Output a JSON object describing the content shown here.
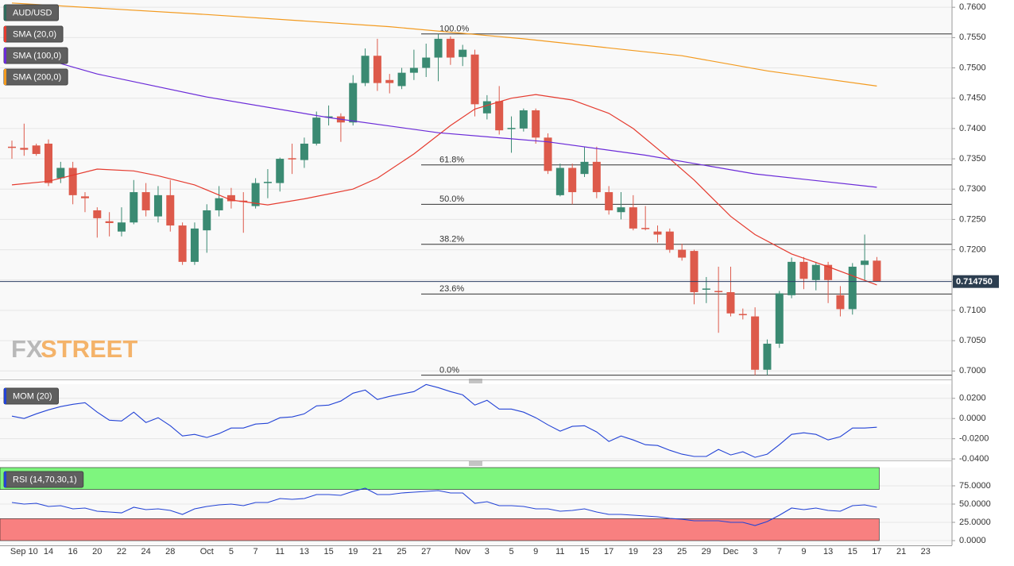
{
  "chart_data": [
    {
      "type": "candlestick",
      "title": "AUD/USD",
      "up_color": "#3a8a72",
      "down_color": "#dd5a4b",
      "grid": true,
      "watermark": [
        "FX",
        "STREET"
      ],
      "categories": [
        "Sep 9",
        "Sep 10",
        "Sep 13",
        "Sep 14",
        "Sep 15",
        "Sep 16",
        "Sep 17",
        "Sep 20",
        "Sep 21",
        "Sep 22",
        "Sep 23",
        "Sep 24",
        "Sep 27",
        "Sep 28",
        "Sep 29",
        "Sep 30",
        "Oct 1",
        "Oct 4",
        "Oct 5",
        "Oct 6",
        "Oct 7",
        "Oct 8",
        "Oct 11",
        "Oct 12",
        "Oct 13",
        "Oct 14",
        "Oct 15",
        "Oct 18",
        "Oct 19",
        "Oct 20",
        "Oct 21",
        "Oct 22",
        "Oct 25",
        "Oct 26",
        "Oct 27",
        "Oct 28",
        "Oct 29",
        "Nov 1",
        "Nov 2",
        "Nov 3",
        "Nov 4",
        "Nov 5",
        "Nov 8",
        "Nov 9",
        "Nov 10",
        "Nov 11",
        "Nov 12",
        "Nov 15",
        "Nov 16",
        "Nov 17",
        "Nov 18",
        "Nov 19",
        "Nov 22",
        "Nov 23",
        "Nov 24",
        "Nov 25",
        "Nov 26",
        "Nov 29",
        "Nov 30",
        "Dec 1",
        "Dec 2",
        "Dec 3",
        "Dec 6",
        "Dec 7",
        "Dec 8",
        "Dec 9",
        "Dec 10",
        "Dec 13",
        "Dec 14",
        "Dec 15",
        "Dec 16",
        "Dec 17"
      ],
      "open": [
        0.737,
        0.7368,
        0.7372,
        0.7375,
        0.7318,
        0.7335,
        0.7288,
        0.7265,
        0.7247,
        0.723,
        0.7245,
        0.7295,
        0.7255,
        0.729,
        0.724,
        0.718,
        0.7232,
        0.7265,
        0.729,
        0.7281,
        0.7272,
        0.731,
        0.731,
        0.7351,
        0.7348,
        0.7375,
        0.7418,
        0.742,
        0.741,
        0.7475,
        0.752,
        0.748,
        0.747,
        0.7492,
        0.75,
        0.7517,
        0.7548,
        0.7518,
        0.7522,
        0.7425,
        0.7445,
        0.7399,
        0.74,
        0.743,
        0.7385,
        0.729,
        0.7335,
        0.7325,
        0.7345,
        0.7295,
        0.7262,
        0.727,
        0.7236,
        0.723,
        0.723,
        0.72,
        0.7198,
        0.7134,
        0.7132,
        0.713,
        0.7094,
        0.709,
        0.7002,
        0.7045,
        0.7125,
        0.718,
        0.715,
        0.7175,
        0.7125,
        0.7102,
        0.7175,
        0.7182
      ],
      "high": [
        0.738,
        0.7408,
        0.7375,
        0.7382,
        0.7345,
        0.7345,
        0.7295,
        0.727,
        0.7262,
        0.727,
        0.7315,
        0.731,
        0.7305,
        0.7315,
        0.7245,
        0.7245,
        0.7275,
        0.7305,
        0.7302,
        0.7295,
        0.7318,
        0.7333,
        0.7352,
        0.7375,
        0.7385,
        0.7428,
        0.7438,
        0.7425,
        0.7488,
        0.7532,
        0.7548,
        0.749,
        0.75,
        0.753,
        0.754,
        0.7556,
        0.7552,
        0.7538,
        0.753,
        0.7455,
        0.747,
        0.742,
        0.7433,
        0.7433,
        0.7392,
        0.7342,
        0.7342,
        0.737,
        0.737,
        0.7305,
        0.7295,
        0.729,
        0.7272,
        0.724,
        0.7235,
        0.721,
        0.72,
        0.7155,
        0.7172,
        0.7172,
        0.7103,
        0.7105,
        0.7052,
        0.7132,
        0.7187,
        0.7188,
        0.718,
        0.718,
        0.714,
        0.7178,
        0.7225,
        0.7188
      ],
      "low": [
        0.735,
        0.7355,
        0.7355,
        0.7305,
        0.731,
        0.7275,
        0.7262,
        0.722,
        0.7222,
        0.7222,
        0.7242,
        0.7255,
        0.7245,
        0.723,
        0.7175,
        0.7175,
        0.7195,
        0.7255,
        0.7268,
        0.7228,
        0.7268,
        0.7285,
        0.7296,
        0.7325,
        0.7335,
        0.7372,
        0.7405,
        0.7378,
        0.7405,
        0.747,
        0.7462,
        0.7458,
        0.7465,
        0.748,
        0.7485,
        0.7478,
        0.7505,
        0.7503,
        0.742,
        0.7415,
        0.739,
        0.736,
        0.7395,
        0.7375,
        0.7325,
        0.7288,
        0.7275,
        0.732,
        0.7285,
        0.7258,
        0.725,
        0.7232,
        0.7232,
        0.7212,
        0.7195,
        0.7182,
        0.711,
        0.7112,
        0.7063,
        0.709,
        0.7085,
        0.6993,
        0.6993,
        0.7038,
        0.712,
        0.7135,
        0.7133,
        0.7112,
        0.709,
        0.7093,
        0.715,
        0.7147
      ],
      "close": [
        0.7368,
        0.7365,
        0.7358,
        0.731,
        0.7335,
        0.729,
        0.7285,
        0.7252,
        0.7244,
        0.7245,
        0.7295,
        0.7265,
        0.729,
        0.724,
        0.718,
        0.7235,
        0.7265,
        0.7285,
        0.728,
        0.7279,
        0.731,
        0.7312,
        0.735,
        0.7349,
        0.7375,
        0.7418,
        0.742,
        0.741,
        0.7475,
        0.752,
        0.7475,
        0.7475,
        0.7492,
        0.75,
        0.7517,
        0.7548,
        0.7517,
        0.753,
        0.744,
        0.7445,
        0.7397,
        0.7401,
        0.743,
        0.7385,
        0.733,
        0.7335,
        0.7295,
        0.7345,
        0.7295,
        0.7265,
        0.727,
        0.7235,
        0.7234,
        0.7225,
        0.72,
        0.7187,
        0.713,
        0.7136,
        0.713,
        0.7095,
        0.7092,
        0.7002,
        0.7045,
        0.7128,
        0.718,
        0.7152,
        0.7175,
        0.715,
        0.7102,
        0.7172,
        0.7182,
        0.71475
      ],
      "overlays": [
        {
          "name": "SMA (20,0)",
          "color": "#e53b2f",
          "x": [
            "Sep 9",
            "Sep 14",
            "Sep 20",
            "Sep 23",
            "Sep 27",
            "Sep 30",
            "Oct 5",
            "Oct 8",
            "Oct 13",
            "Oct 19",
            "Oct 21",
            "Oct 26",
            "Oct 29",
            "Nov 2",
            "Nov 5",
            "Nov 9",
            "Nov 12",
            "Nov 17",
            "Nov 19",
            "Nov 24",
            "Nov 26",
            "Dec 1",
            "Dec 3",
            "Dec 8",
            "Dec 13",
            "Dec 15",
            "Dec 17"
          ],
          "values": [
            0.7307,
            0.7313,
            0.7333,
            0.733,
            0.7322,
            0.7307,
            0.7282,
            0.7274,
            0.7284,
            0.73,
            0.7318,
            0.7358,
            0.7405,
            0.7432,
            0.745,
            0.7456,
            0.7447,
            0.7425,
            0.74,
            0.735,
            0.7315,
            0.7255,
            0.7225,
            0.7193,
            0.7172,
            0.7157,
            0.7142
          ]
        },
        {
          "name": "SMA (100,0)",
          "color": "#6a2ad8",
          "x": [
            "Sep 9",
            "Sep 20",
            "Oct 1",
            "Oct 15",
            "Oct 28",
            "Nov 10",
            "Nov 22",
            "Dec 3",
            "Dec 17"
          ],
          "values": [
            0.753,
            0.749,
            0.7452,
            0.7418,
            0.7393,
            0.7378,
            0.7356,
            0.7325,
            0.7303
          ]
        },
        {
          "name": "SMA (200,0)",
          "color": "#f39a1e",
          "x": [
            "Sep 9",
            "Oct 1",
            "Oct 22",
            "Nov 8",
            "Nov 25",
            "Dec 6",
            "Dec 17"
          ],
          "values": [
            0.7607,
            0.7588,
            0.7568,
            0.7548,
            0.752,
            0.7495,
            0.747
          ]
        }
      ],
      "fib_levels": [
        {
          "value": 0.7556,
          "label": "100.0%"
        },
        {
          "value": 0.734,
          "label": "61.8%"
        },
        {
          "value": 0.7275,
          "label": "50.0%"
        },
        {
          "value": 0.7209,
          "label": "38.2%"
        },
        {
          "value": 0.7127,
          "label": "23.6%"
        },
        {
          "value": 0.6993,
          "label": "0.0%"
        }
      ],
      "last_price": {
        "value": 0.71475,
        "label": "0.714750"
      },
      "ylim": [
        0.6986,
        0.7612
      ],
      "yticks": [
        {
          "value": 0.76,
          "label": "0.7600"
        },
        {
          "value": 0.755,
          "label": "0.7550"
        },
        {
          "value": 0.75,
          "label": "0.7500"
        },
        {
          "value": 0.745,
          "label": "0.7450"
        },
        {
          "value": 0.74,
          "label": "0.7400"
        },
        {
          "value": 0.735,
          "label": "0.7350"
        },
        {
          "value": 0.73,
          "label": "0.7300"
        },
        {
          "value": 0.725,
          "label": "0.7250"
        },
        {
          "value": 0.72,
          "label": "0.7200"
        },
        {
          "value": 0.715,
          "label": "0.7150"
        },
        {
          "value": 0.71,
          "label": "0.7100"
        },
        {
          "value": 0.705,
          "label": "0.7050"
        },
        {
          "value": 0.7,
          "label": "0.7000"
        }
      ],
      "xticks": [
        {
          "value": "Sep 10",
          "label": "Sep 10"
        },
        {
          "value": "Sep 14",
          "label": "14"
        },
        {
          "value": "Sep 16",
          "label": "16"
        },
        {
          "value": "Sep 20",
          "label": "20"
        },
        {
          "value": "Sep 22",
          "label": "22"
        },
        {
          "value": "Sep 24",
          "label": "24"
        },
        {
          "value": "Sep 28",
          "label": "28"
        },
        {
          "value": "Oct 1",
          "label": "Oct"
        },
        {
          "value": "Oct 5",
          "label": "5"
        },
        {
          "value": "Oct 7",
          "label": "7"
        },
        {
          "value": "Oct 11",
          "label": "11"
        },
        {
          "value": "Oct 13",
          "label": "13"
        },
        {
          "value": "Oct 15",
          "label": "15"
        },
        {
          "value": "Oct 19",
          "label": "19"
        },
        {
          "value": "Oct 21",
          "label": "21"
        },
        {
          "value": "Oct 25",
          "label": "25"
        },
        {
          "value": "Oct 27",
          "label": "27"
        },
        {
          "value": "Nov 1",
          "label": "Nov"
        },
        {
          "value": "Nov 3",
          "label": "3"
        },
        {
          "value": "Nov 5",
          "label": "5"
        },
        {
          "value": "Nov 9",
          "label": "9"
        },
        {
          "value": "Nov 11",
          "label": "11"
        },
        {
          "value": "Nov 15",
          "label": "15"
        },
        {
          "value": "Nov 17",
          "label": "17"
        },
        {
          "value": "Nov 19",
          "label": "19"
        },
        {
          "value": "Nov 23",
          "label": "23"
        },
        {
          "value": "Nov 25",
          "label": "25"
        },
        {
          "value": "Nov 29",
          "label": "29"
        },
        {
          "value": "Dec 1",
          "label": "Dec"
        },
        {
          "value": "Dec 3",
          "label": "3"
        },
        {
          "value": "Dec 7",
          "label": "7"
        },
        {
          "value": "Dec 9",
          "label": "9"
        },
        {
          "value": "Dec 13",
          "label": "13"
        },
        {
          "value": "Dec 15",
          "label": "15"
        },
        {
          "value": "Dec 17",
          "label": "17"
        },
        {
          "value": "Dec 21",
          "label": "21"
        },
        {
          "value": "Dec 23",
          "label": "23"
        }
      ]
    },
    {
      "type": "line",
      "title": "MOM (20)",
      "color": "#2343d6",
      "grid": true,
      "values": [
        0.0024,
        0.0,
        0.0047,
        0.0086,
        0.0118,
        0.0141,
        0.0157,
        0.0063,
        -0.0016,
        -0.0024,
        0.0063,
        -0.0039,
        0.0008,
        -0.0071,
        -0.0173,
        -0.0157,
        -0.0188,
        -0.0149,
        -0.0094,
        -0.0094,
        -0.0055,
        -0.0047,
        0.0008,
        0.0016,
        0.0047,
        0.0125,
        0.0133,
        0.0173,
        0.0251,
        0.0282,
        0.0188,
        0.022,
        0.0243,
        0.0267,
        0.0337,
        0.0306,
        0.0267,
        0.0235,
        0.0133,
        0.018,
        0.0094,
        0.0094,
        0.0063,
        0.0008,
        -0.0063,
        -0.0125,
        -0.0078,
        -0.0071,
        -0.0133,
        -0.0227,
        -0.0173,
        -0.0212,
        -0.0259,
        -0.0267,
        -0.0314,
        -0.0353,
        -0.0376,
        -0.0376,
        -0.0306,
        -0.0361,
        -0.0329,
        -0.0384,
        -0.0353,
        -0.0259,
        -0.0157,
        -0.0141,
        -0.0157,
        -0.0212,
        -0.018,
        -0.0094,
        -0.0094,
        -0.0086
      ],
      "ylim": [
        -0.0415,
        0.034
      ],
      "yticks": [
        {
          "value": 0.02,
          "label": "0.0200"
        },
        {
          "value": 0,
          "label": "0.0000"
        },
        {
          "value": -0.02,
          "label": "-0.0200"
        },
        {
          "value": -0.04,
          "label": "-0.0400"
        }
      ]
    },
    {
      "type": "line",
      "title": "RSI (14,70,30,1)",
      "color": "#2343d6",
      "grid": true,
      "values": [
        52.2,
        50.0,
        51.1,
        46.7,
        47.8,
        43.5,
        44.6,
        40.2,
        39.1,
        38.0,
        45.7,
        42.4,
        43.5,
        41.3,
        35.9,
        43.5,
        46.7,
        48.9,
        50.0,
        47.8,
        52.2,
        52.2,
        57.6,
        56.5,
        57.6,
        63.0,
        63.0,
        62.0,
        67.4,
        71.7,
        63.0,
        63.0,
        65.2,
        66.3,
        67.4,
        68.5,
        65.2,
        65.2,
        51.1,
        53.3,
        47.8,
        47.8,
        46.7,
        43.5,
        43.5,
        40.2,
        41.3,
        43.5,
        39.1,
        35.9,
        35.9,
        34.8,
        33.7,
        32.6,
        30.4,
        29.3,
        27.2,
        27.2,
        27.2,
        25.0,
        25.0,
        20.7,
        26.1,
        34.8,
        44.6,
        42.4,
        44.6,
        41.3,
        40.2,
        47.8,
        48.9,
        45.7
      ],
      "bands": [
        {
          "from": 70,
          "to": 100,
          "color": "#7ef57e"
        },
        {
          "from": 0,
          "to": 30,
          "color": "#f88080"
        }
      ],
      "ylim": [
        -6.5,
        100
      ],
      "yticks": [
        {
          "value": 75,
          "label": "75.0000"
        },
        {
          "value": 50,
          "label": "50.0000"
        },
        {
          "value": 25,
          "label": "25.0000"
        },
        {
          "value": 0,
          "label": "0.0000"
        }
      ]
    }
  ]
}
